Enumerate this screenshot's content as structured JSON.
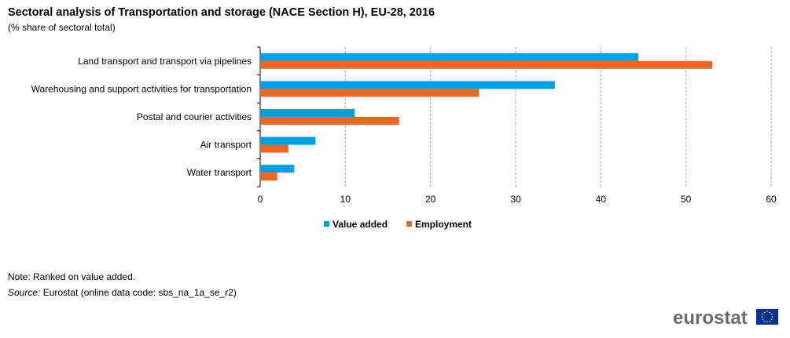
{
  "header": {
    "title": "Sectoral analysis of Transportation and storage (NACE Section H), EU-28, 2016",
    "subtitle": "(% share of sectoral total)"
  },
  "footer": {
    "note": "Note:  Ranked on value added.",
    "source_label": "Source:",
    "source_text": " Eurostat (online data code: sbs_na_1a_se_r2)",
    "logo_text": "eurostat"
  },
  "chart_data": {
    "type": "bar",
    "orientation": "horizontal",
    "categories": [
      "Land transport and transport via pipelines",
      "Warehousing and support activities for transportation",
      "Postal and courier activities",
      "Air transport",
      "Water transport"
    ],
    "series": [
      {
        "name": "Value added",
        "color": "#00a0e3",
        "values": [
          44.4,
          34.6,
          11.1,
          6.5,
          4.0
        ]
      },
      {
        "name": "Employment",
        "color": "#f06424",
        "values": [
          53.1,
          25.7,
          16.3,
          3.3,
          2.0
        ]
      }
    ],
    "xlim": [
      0,
      60
    ],
    "xticks": [
      0,
      10,
      20,
      30,
      40,
      50,
      60
    ],
    "grid": "vertical dashed",
    "legend_position": "bottom-center"
  }
}
